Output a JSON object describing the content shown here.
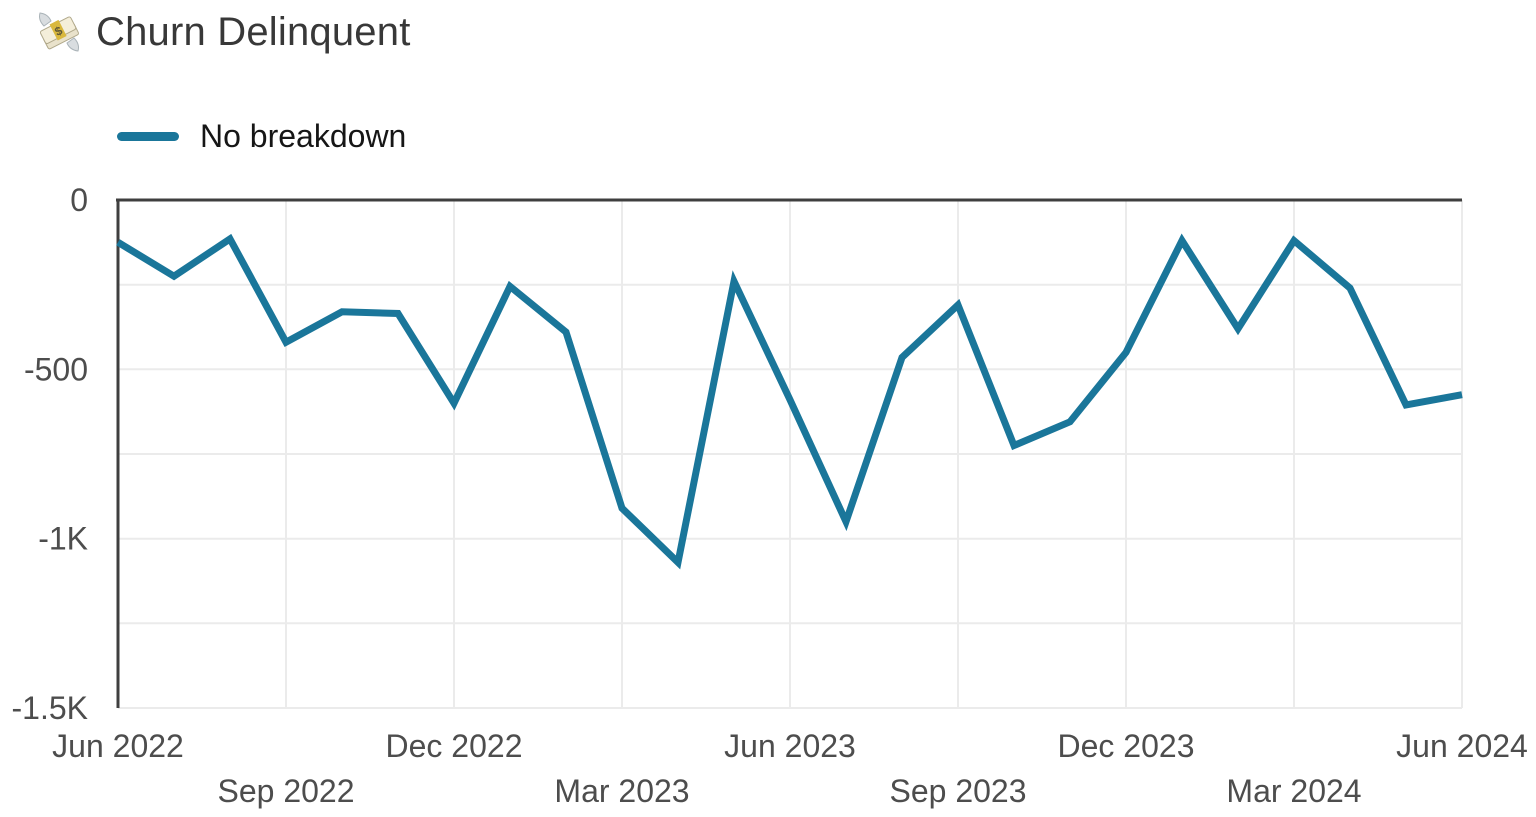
{
  "title": {
    "icon": "money-with-wings-icon",
    "text": "Churn Delinquent"
  },
  "legend": {
    "items": [
      {
        "label": "No breakdown",
        "color": "#1a769a"
      }
    ]
  },
  "colors": {
    "line": "#1a769a",
    "axis": "#3f3f3f",
    "grid": "#ebebeb",
    "title_text": "#383838",
    "tick_text": "#4d4d4d",
    "legend_text": "#161616",
    "background": "#ffffff"
  },
  "chart_data": {
    "type": "line",
    "title": "Churn Delinquent",
    "legend_position": "top-left",
    "grid": true,
    "ylim": [
      -1500,
      0
    ],
    "x": [
      "Jun 2022",
      "Jul 2022",
      "Aug 2022",
      "Sep 2022",
      "Oct 2022",
      "Nov 2022",
      "Dec 2022",
      "Jan 2023",
      "Feb 2023",
      "Mar 2023",
      "Apr 2023",
      "May 2023",
      "Jun 2023",
      "Jul 2023",
      "Aug 2023",
      "Sep 2023",
      "Oct 2023",
      "Nov 2023",
      "Dec 2023",
      "Jan 2024",
      "Feb 2024",
      "Mar 2024",
      "Apr 2024",
      "May 2024",
      "Jun 2024"
    ],
    "series": [
      {
        "name": "No breakdown",
        "values": [
          -125,
          -225,
          -115,
          -420,
          -330,
          -335,
          -600,
          -255,
          -390,
          -910,
          -1070,
          -240,
          -590,
          -950,
          -465,
          -310,
          -725,
          -655,
          -450,
          -120,
          -380,
          -120,
          -260,
          -605,
          -575
        ]
      }
    ],
    "y_ticks": [
      {
        "value": 0,
        "label": "0"
      },
      {
        "value": -500,
        "label": "-500"
      },
      {
        "value": -1000,
        "label": "-1K"
      },
      {
        "value": -1500,
        "label": "-1.5K"
      }
    ],
    "y_grid_values": [
      -250,
      -500,
      -750,
      -1000,
      -1250,
      -1500
    ],
    "x_grid_indices": [
      3,
      6,
      9,
      12,
      15,
      18,
      21,
      24
    ],
    "x_ticks": [
      {
        "index": 0,
        "label": "Jun 2022",
        "row": 1
      },
      {
        "index": 3,
        "label": "Sep 2022",
        "row": 2
      },
      {
        "index": 6,
        "label": "Dec 2022",
        "row": 1
      },
      {
        "index": 9,
        "label": "Mar 2023",
        "row": 2
      },
      {
        "index": 12,
        "label": "Jun 2023",
        "row": 1
      },
      {
        "index": 15,
        "label": "Sep 2023",
        "row": 2
      },
      {
        "index": 18,
        "label": "Dec 2023",
        "row": 1
      },
      {
        "index": 21,
        "label": "Mar 2024",
        "row": 2
      },
      {
        "index": 24,
        "label": "Jun 2024",
        "row": 1
      }
    ]
  }
}
